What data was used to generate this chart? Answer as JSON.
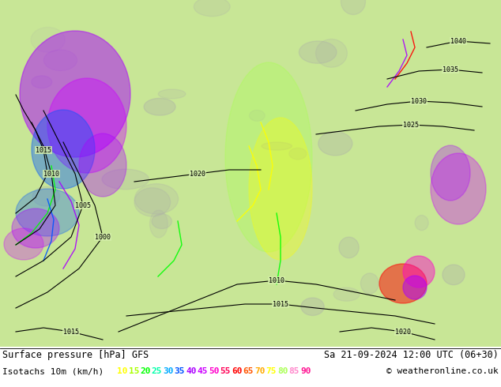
{
  "title_left": "Surface pressure [hPa] GFS",
  "title_right": "Sa 21-09-2024 12:00 UTC (06+30)",
  "subtitle_left": "Isotachs 10m (km/h)",
  "copyright": "© weatheronline.co.uk",
  "isotach_values": [
    "10",
    "15",
    "20",
    "25",
    "30",
    "35",
    "40",
    "45",
    "50",
    "55",
    "60",
    "65",
    "70",
    "75",
    "80",
    "85",
    "90"
  ],
  "isotach_colors": [
    "#ffff00",
    "#aaff00",
    "#00ff00",
    "#00ffaa",
    "#00aaff",
    "#0055ff",
    "#aa00ff",
    "#cc00ff",
    "#ff00cc",
    "#ff0055",
    "#ff0000",
    "#ff5500",
    "#ffaa00",
    "#ffff00",
    "#aaff55",
    "#ff88cc",
    "#ff1493"
  ],
  "bg_color": "#ffffff",
  "map_bg": "#c8e6c9",
  "text_color": "#000000",
  "font_size_title": 8.5,
  "font_size_legend": 8,
  "fig_width": 6.34,
  "fig_height": 4.9,
  "dpi": 100
}
